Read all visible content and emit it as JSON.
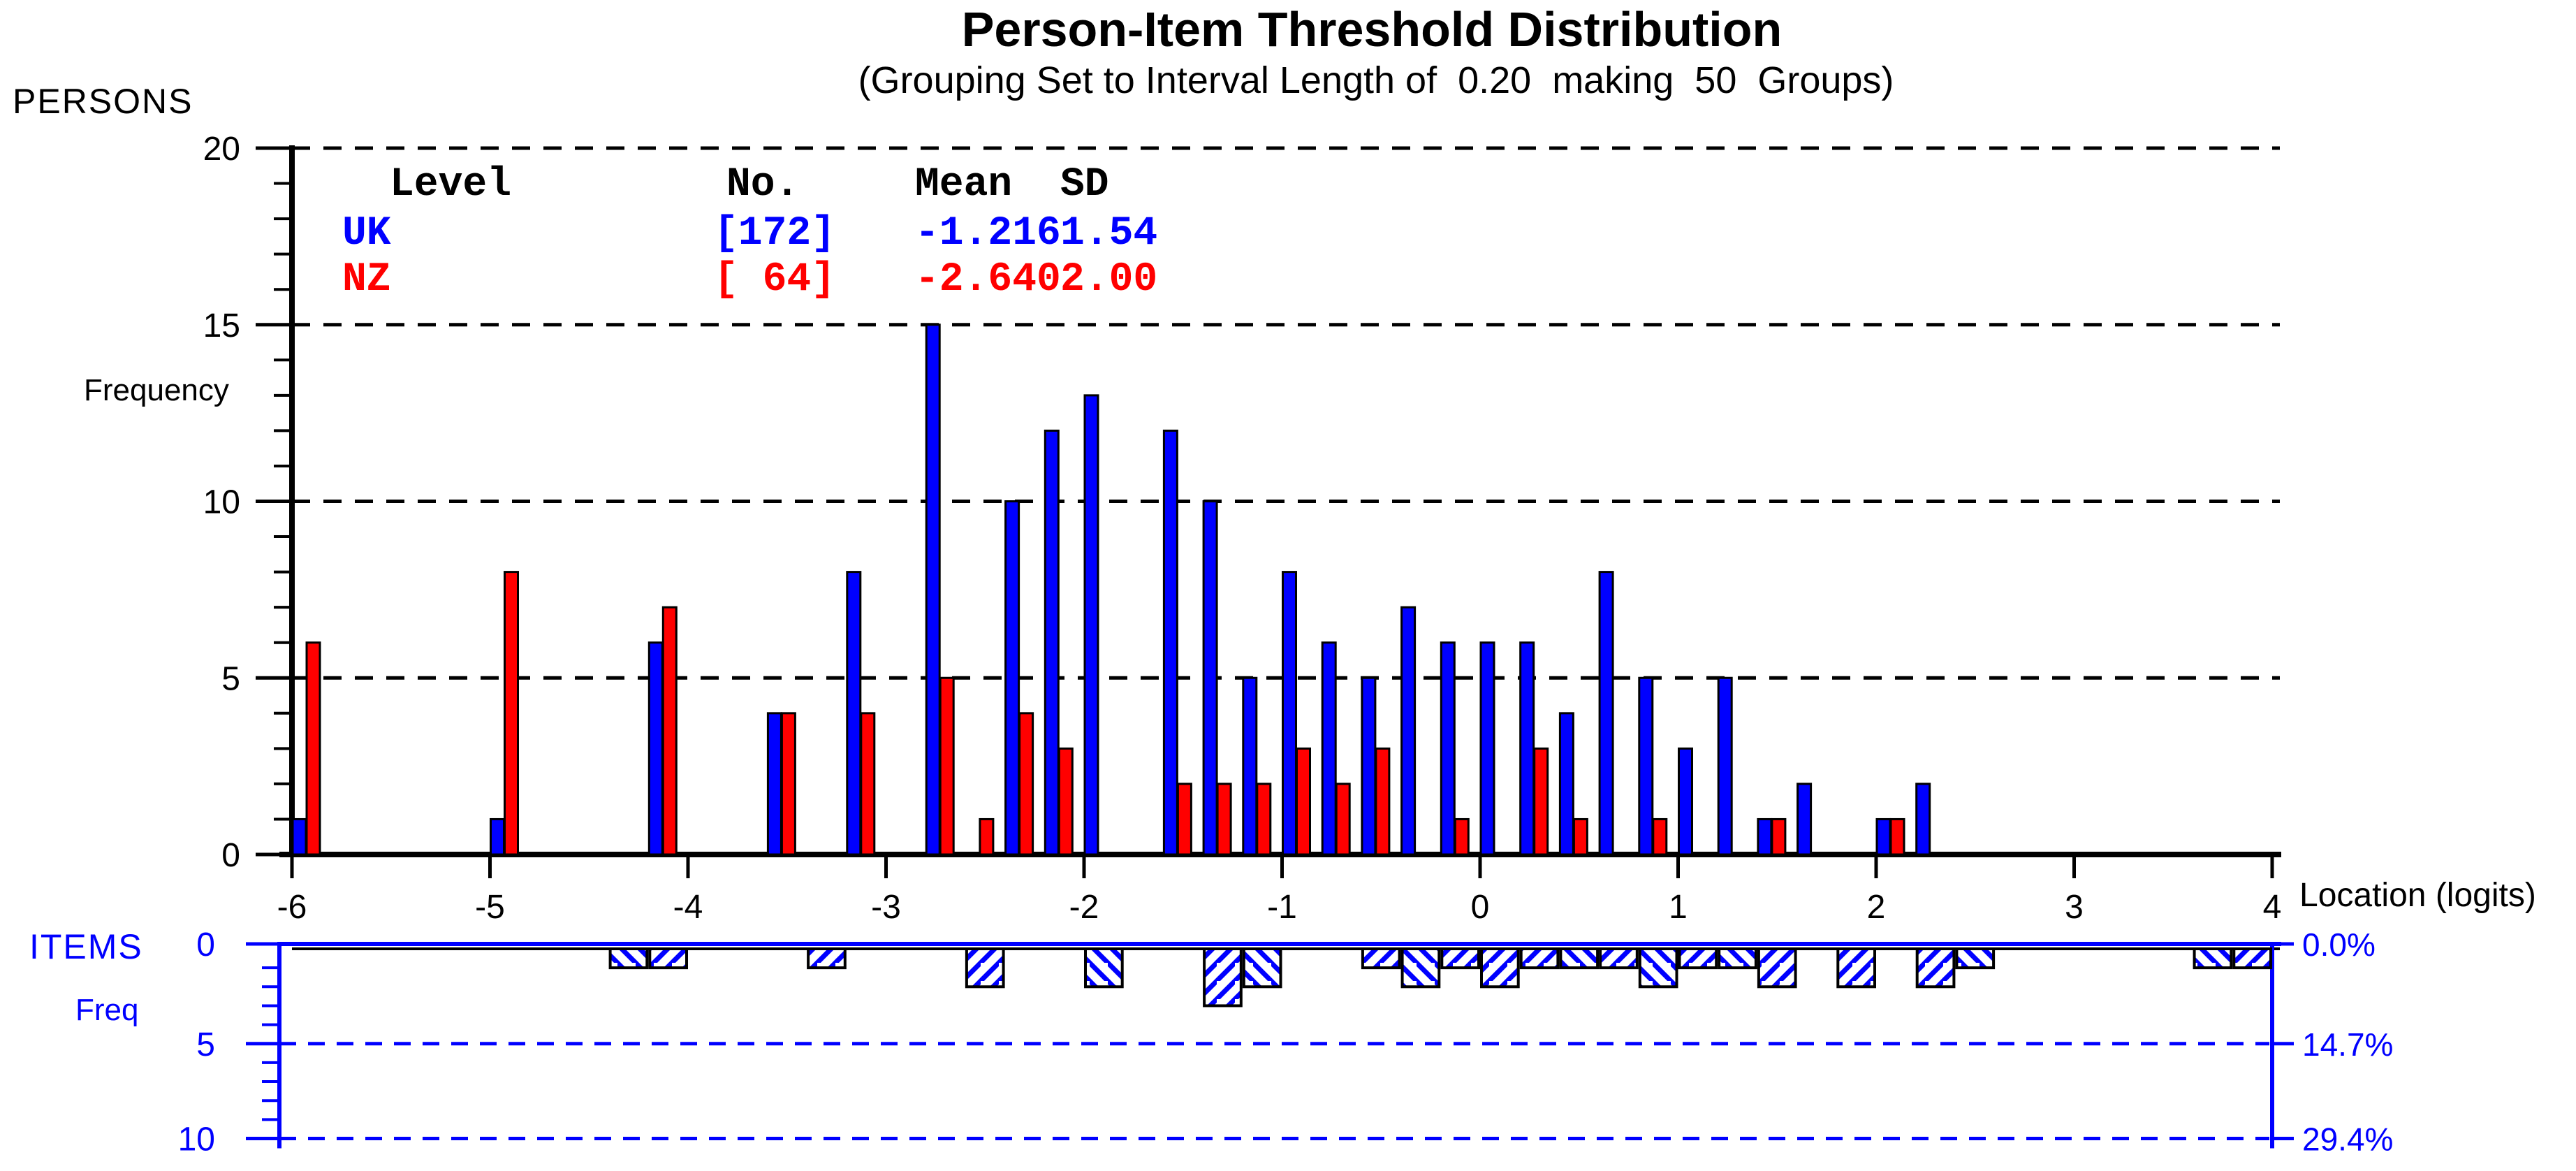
{
  "chart_data": {
    "type": "bar",
    "title": "Person-Item Threshold Distribution",
    "subtitle": "(Grouping Set to Interval Length of  0.20  making  50  Groups)",
    "x_axis": {
      "label": "Location (logits)",
      "min": -6,
      "max": 4,
      "bin_width": 0.2,
      "ticks": [
        -6,
        -5,
        -4,
        -3,
        -2,
        -1,
        0,
        1,
        2,
        3,
        4
      ]
    },
    "persons": {
      "panel_label": "PERSONS",
      "y_label": "Frequency",
      "y_ticks": [
        0,
        5,
        10,
        15,
        20
      ],
      "y_max": 20,
      "grid": "dashed-black",
      "series": [
        {
          "name": "UK",
          "color": "#0000ff",
          "bars": [
            [
              -6.0,
              1
            ],
            [
              -5.0,
              1
            ],
            [
              -4.2,
              6
            ],
            [
              -3.6,
              4
            ],
            [
              -3.2,
              8
            ],
            [
              -2.8,
              15
            ],
            [
              -2.4,
              10
            ],
            [
              -2.2,
              12
            ],
            [
              -2.0,
              13
            ],
            [
              -1.6,
              12
            ],
            [
              -1.4,
              10
            ],
            [
              -1.2,
              5
            ],
            [
              -1.0,
              8
            ],
            [
              -0.8,
              6
            ],
            [
              -0.6,
              5
            ],
            [
              -0.4,
              7
            ],
            [
              -0.2,
              6
            ],
            [
              0.0,
              6
            ],
            [
              0.2,
              6
            ],
            [
              0.4,
              4
            ],
            [
              0.6,
              8
            ],
            [
              0.8,
              5
            ],
            [
              1.0,
              3
            ],
            [
              1.2,
              5
            ],
            [
              1.4,
              1
            ],
            [
              1.6,
              2
            ],
            [
              2.0,
              1
            ],
            [
              2.2,
              2
            ]
          ]
        },
        {
          "name": "NZ",
          "color": "#ff0000",
          "bars": [
            [
              -6.0,
              6
            ],
            [
              -5.0,
              8
            ],
            [
              -4.2,
              7
            ],
            [
              -3.6,
              4
            ],
            [
              -3.2,
              4
            ],
            [
              -2.8,
              5
            ],
            [
              -2.6,
              1
            ],
            [
              -2.4,
              4
            ],
            [
              -2.2,
              3
            ],
            [
              -1.6,
              2
            ],
            [
              -1.4,
              2
            ],
            [
              -1.2,
              2
            ],
            [
              -1.0,
              3
            ],
            [
              -0.8,
              2
            ],
            [
              -0.6,
              3
            ],
            [
              -0.2,
              1
            ],
            [
              0.2,
              3
            ],
            [
              0.4,
              1
            ],
            [
              0.8,
              1
            ],
            [
              1.4,
              1
            ],
            [
              2.0,
              1
            ]
          ]
        }
      ]
    },
    "items": {
      "panel_label": "ITEMS",
      "y_label": "Freq",
      "y_ticks": [
        0,
        5,
        10
      ],
      "y_max": 10,
      "grid": "dashed-blue",
      "percent_labels": [
        "0.0%",
        "14.7%",
        "29.4%"
      ],
      "hatch_color": "#0000ff",
      "bars": [
        [
          -4.4,
          1,
          "b"
        ],
        [
          -4.2,
          1,
          "f"
        ],
        [
          -3.4,
          1,
          "f"
        ],
        [
          -2.6,
          2,
          "f"
        ],
        [
          -2.0,
          2,
          "b"
        ],
        [
          -1.4,
          3,
          "f"
        ],
        [
          -1.2,
          2,
          "b"
        ],
        [
          -0.6,
          1,
          "f"
        ],
        [
          -0.4,
          2,
          "b"
        ],
        [
          -0.2,
          1,
          "f"
        ],
        [
          0.0,
          2,
          "f"
        ],
        [
          0.2,
          1,
          "f"
        ],
        [
          0.4,
          1,
          "b"
        ],
        [
          0.6,
          1,
          "f"
        ],
        [
          0.8,
          2,
          "b"
        ],
        [
          1.0,
          1,
          "f"
        ],
        [
          1.2,
          1,
          "b"
        ],
        [
          1.4,
          2,
          "f"
        ],
        [
          1.8,
          2,
          "f"
        ],
        [
          2.2,
          2,
          "f"
        ],
        [
          2.4,
          1,
          "b"
        ],
        [
          3.6,
          1,
          "b"
        ],
        [
          3.8,
          1,
          "f"
        ]
      ]
    }
  },
  "legend": {
    "headers": {
      "level": "Level",
      "no": "No.",
      "mean": "Mean",
      "sd": "SD"
    },
    "rows": [
      {
        "level": "UK",
        "no": "[172]",
        "mean": "-1.216",
        "sd": "1.54",
        "color": "#0000ff"
      },
      {
        "level": "NZ",
        "no": "[ 64]",
        "mean": "-2.640",
        "sd": "2.00",
        "color": "#ff0000"
      }
    ]
  }
}
